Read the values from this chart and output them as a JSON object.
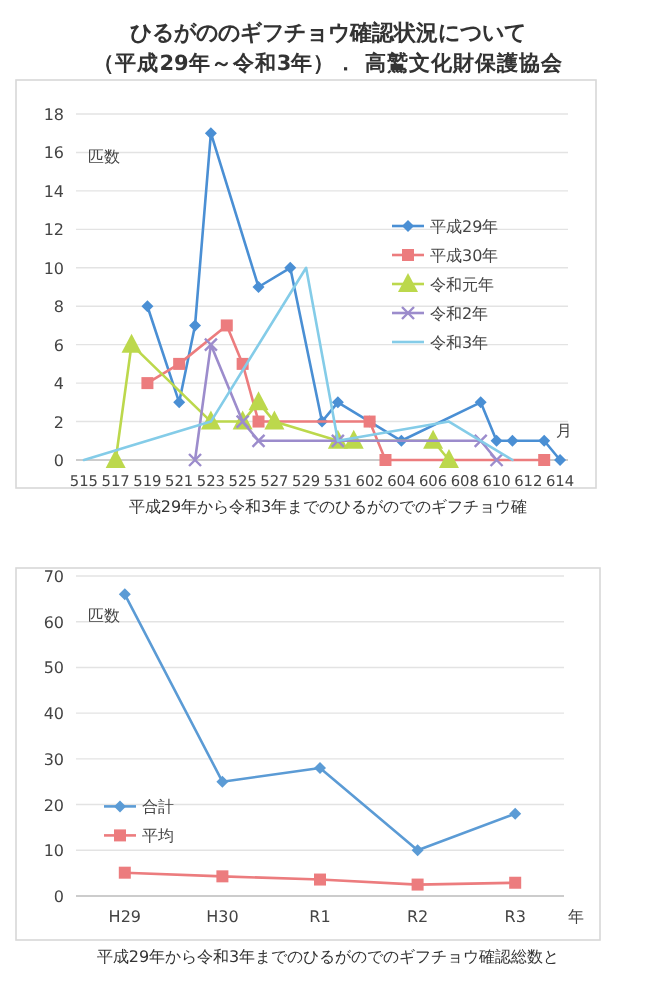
{
  "chart_data": [
    {
      "type": "line",
      "title": "ひるがののギフチョウ確認状況について",
      "subtitle": "（平成29年～令和3年）．  高鷲文化財保護協会",
      "ylabel": "匹数",
      "xlabel": "月",
      "annotations": [
        "平成29年から令和3年までのひるがのでのギフチョウ確"
      ],
      "categories": [
        "515",
        null,
        "517",
        null,
        "519",
        null,
        "521",
        null,
        "523",
        null,
        "525",
        null,
        "527",
        null,
        "529",
        null,
        "531",
        null,
        "602",
        null,
        "604",
        null,
        "606",
        null,
        "608",
        null,
        "610",
        null,
        "612",
        null,
        "614"
      ],
      "series": [
        {
          "name": "平成29年",
          "color": "#4a8fd4",
          "marker": "diamond",
          "values": [
            null,
            null,
            null,
            null,
            8,
            null,
            3,
            7,
            17,
            null,
            null,
            9,
            null,
            10,
            null,
            2,
            3,
            null,
            2,
            null,
            1,
            null,
            null,
            null,
            null,
            3,
            1,
            1,
            null,
            1,
            0
          ]
        },
        {
          "name": "平成30年",
          "color": "#ec7c7e",
          "marker": "square",
          "values": [
            null,
            null,
            null,
            null,
            4,
            null,
            5,
            null,
            null,
            7,
            5,
            2,
            null,
            null,
            null,
            null,
            null,
            null,
            2,
            0,
            null,
            null,
            null,
            null,
            null,
            null,
            null,
            null,
            null,
            0,
            null
          ]
        },
        {
          "name": "令和元年",
          "color": "#bcd84c",
          "marker": "triangle",
          "values": [
            null,
            null,
            0,
            6,
            null,
            null,
            null,
            null,
            2,
            null,
            2,
            3,
            2,
            null,
            null,
            null,
            1,
            1,
            null,
            null,
            null,
            null,
            1,
            0,
            null,
            null,
            null,
            null,
            null,
            null,
            null
          ]
        },
        {
          "name": "令和2年",
          "color": "#9c8ccc",
          "marker": "cross",
          "values": [
            null,
            null,
            null,
            null,
            null,
            null,
            null,
            0,
            6,
            null,
            2,
            1,
            null,
            null,
            null,
            null,
            1,
            null,
            null,
            null,
            null,
            null,
            null,
            null,
            null,
            1,
            0,
            null,
            null,
            null,
            null
          ]
        },
        {
          "name": "令和3年",
          "color": "#84cce8",
          "marker": "none",
          "values": [
            0,
            null,
            null,
            null,
            null,
            null,
            null,
            null,
            2,
            null,
            null,
            null,
            null,
            null,
            10,
            null,
            1,
            null,
            null,
            null,
            null,
            null,
            null,
            2,
            null,
            1,
            null,
            0,
            null,
            null,
            null
          ]
        }
      ],
      "ylim": [
        0,
        18
      ],
      "yticks": [
        0,
        2,
        4,
        6,
        8,
        10,
        12,
        14,
        16,
        18
      ],
      "grid": "y",
      "legend": "right"
    },
    {
      "type": "line",
      "ylabel": "匹数",
      "xlabel": "年",
      "annotations": [
        "平成29年から令和3年までのひるがのでのギフチョウ確認総数と"
      ],
      "categories": [
        "H29",
        "H30",
        "R1",
        "R2",
        "R3"
      ],
      "series": [
        {
          "name": "合計",
          "color": "#5b9bd5",
          "marker": "diamond",
          "values": [
            66,
            25,
            28,
            10,
            18
          ]
        },
        {
          "name": "平均",
          "color": "#ec7c7e",
          "marker": "square",
          "values": [
            5.1,
            4.3,
            3.6,
            2.5,
            2.9
          ]
        }
      ],
      "ylim": [
        0,
        70
      ],
      "yticks": [
        0,
        10,
        20,
        30,
        40,
        50,
        60,
        70
      ],
      "grid": "y",
      "legend": "left"
    }
  ]
}
